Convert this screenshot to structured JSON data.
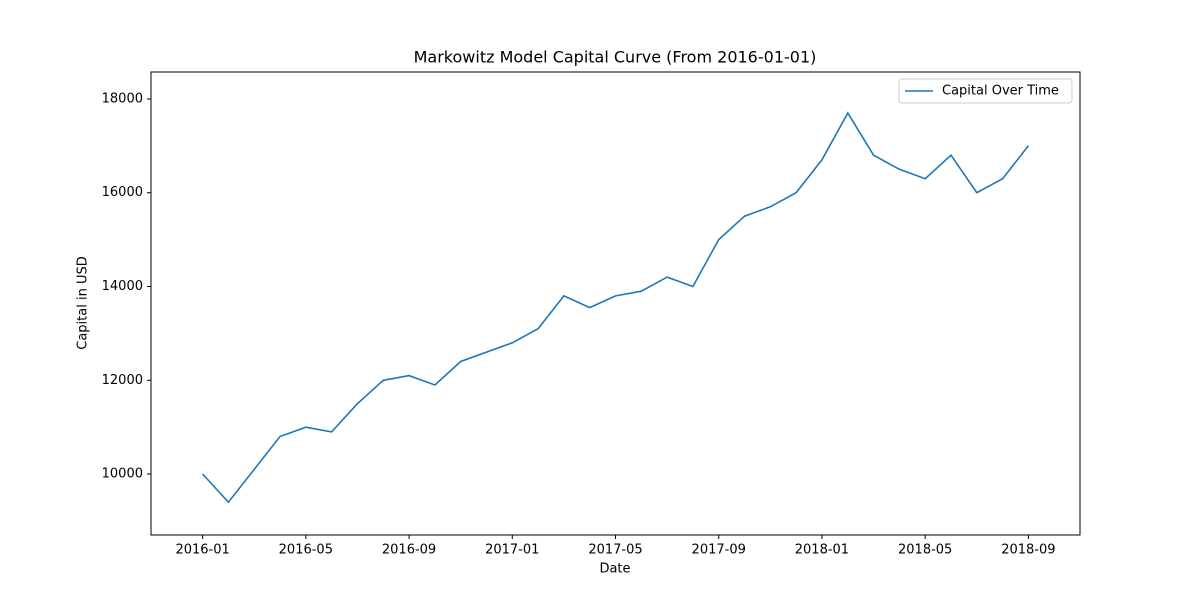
{
  "chart_data": {
    "type": "line",
    "title": "Markowitz Model Capital Curve (From 2016-01-01)",
    "x_label": "Date",
    "y_label": "Capital in USD",
    "x": [
      "2016-01",
      "2016-02",
      "2016-03",
      "2016-04",
      "2016-05",
      "2016-06",
      "2016-07",
      "2016-08",
      "2016-09",
      "2016-10",
      "2016-11",
      "2016-12",
      "2017-01",
      "2017-02",
      "2017-03",
      "2017-04",
      "2017-05",
      "2017-06",
      "2017-07",
      "2017-08",
      "2017-09",
      "2017-10",
      "2017-11",
      "2017-12",
      "2018-01",
      "2018-02",
      "2018-03",
      "2018-04",
      "2018-05",
      "2018-06",
      "2018-07",
      "2018-08",
      "2018-09"
    ],
    "series": [
      {
        "name": "Capital Over Time",
        "color": "#1f77b4",
        "values": [
          10000,
          9400,
          10100,
          10800,
          11000,
          10900,
          11500,
          12000,
          12100,
          11900,
          12400,
          12600,
          12800,
          13100,
          13800,
          13550,
          13800,
          13900,
          14200,
          14000,
          15000,
          15500,
          15700,
          16000,
          16700,
          17700,
          16800,
          16500,
          16300,
          16800,
          16000,
          16300,
          17000
        ]
      }
    ],
    "xlim": [
      "2015-11",
      "2018-11"
    ],
    "xticks": [
      "2016-01",
      "2016-05",
      "2016-09",
      "2017-01",
      "2017-05",
      "2017-09",
      "2018-01",
      "2018-05",
      "2018-09"
    ],
    "ylim": [
      8700,
      18575
    ],
    "yticks": [
      10000,
      12000,
      14000,
      16000,
      18000
    ],
    "legend": "upper right"
  }
}
